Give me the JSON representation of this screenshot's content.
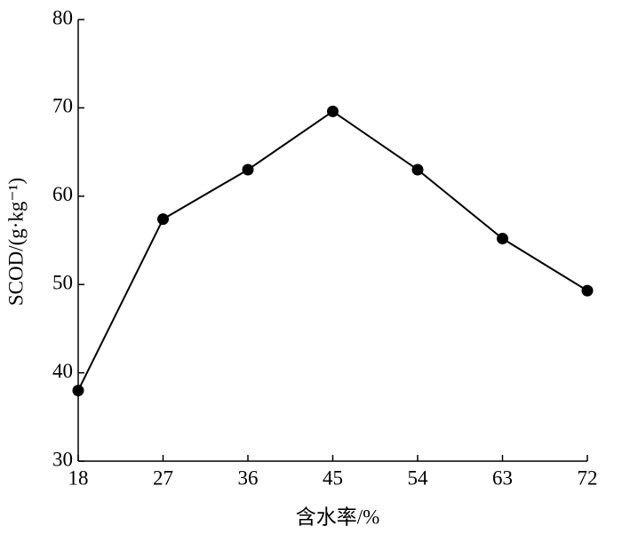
{
  "chart_data": {
    "type": "line",
    "x_label": "含水率/%",
    "y_label": "SCOD/(g·kg⁻¹)",
    "x": [
      18,
      27,
      36,
      45,
      54,
      63,
      72
    ],
    "series": [
      {
        "name": "SCOD",
        "color": "#000000",
        "values": [
          38,
          57.4,
          63,
          69.6,
          63,
          55.2,
          49.3
        ]
      }
    ],
    "xlim": [
      18,
      72
    ],
    "xticks": [
      18,
      27,
      36,
      45,
      54,
      63,
      72
    ],
    "ylim": [
      30,
      80
    ],
    "yticks": [
      30,
      40,
      50,
      60,
      70,
      80
    ],
    "grid": false
  }
}
